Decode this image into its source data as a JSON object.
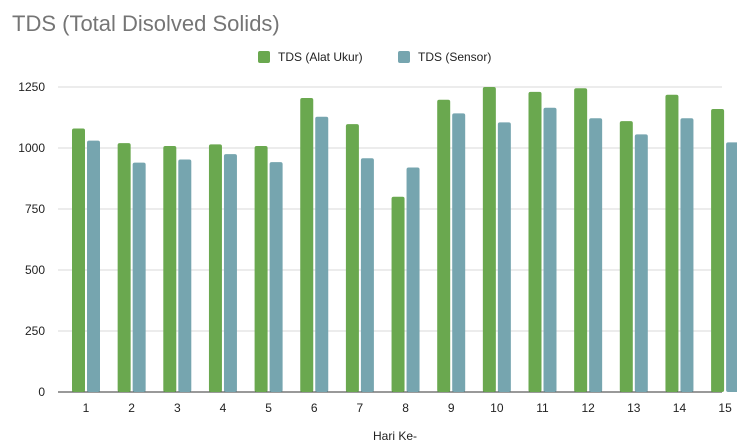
{
  "chart_data": {
    "type": "bar",
    "title": "TDS (Total Disolved Solids)",
    "xlabel": "Hari Ke-",
    "ylabel": "",
    "categories": [
      "1",
      "2",
      "3",
      "4",
      "5",
      "6",
      "7",
      "8",
      "9",
      "10",
      "11",
      "12",
      "13",
      "14",
      "15"
    ],
    "series": [
      {
        "name": "TDS (Alat Ukur)",
        "color": "#6aa84f",
        "values": [
          1080,
          1020,
          1008,
          1015,
          1008,
          1205,
          1098,
          800,
          1198,
          1250,
          1230,
          1245,
          1110,
          1218,
          1160
        ]
      },
      {
        "name": "TDS (Sensor)",
        "color": "#76a5af",
        "values": [
          1030,
          940,
          953,
          975,
          942,
          1128,
          958,
          920,
          1142,
          1105,
          1165,
          1122,
          1056,
          1122,
          1023
        ]
      }
    ],
    "ylim": [
      0,
      1250
    ],
    "yticks": [
      0,
      250,
      500,
      750,
      1000,
      1250
    ],
    "grid": true,
    "legend_position": "top"
  }
}
